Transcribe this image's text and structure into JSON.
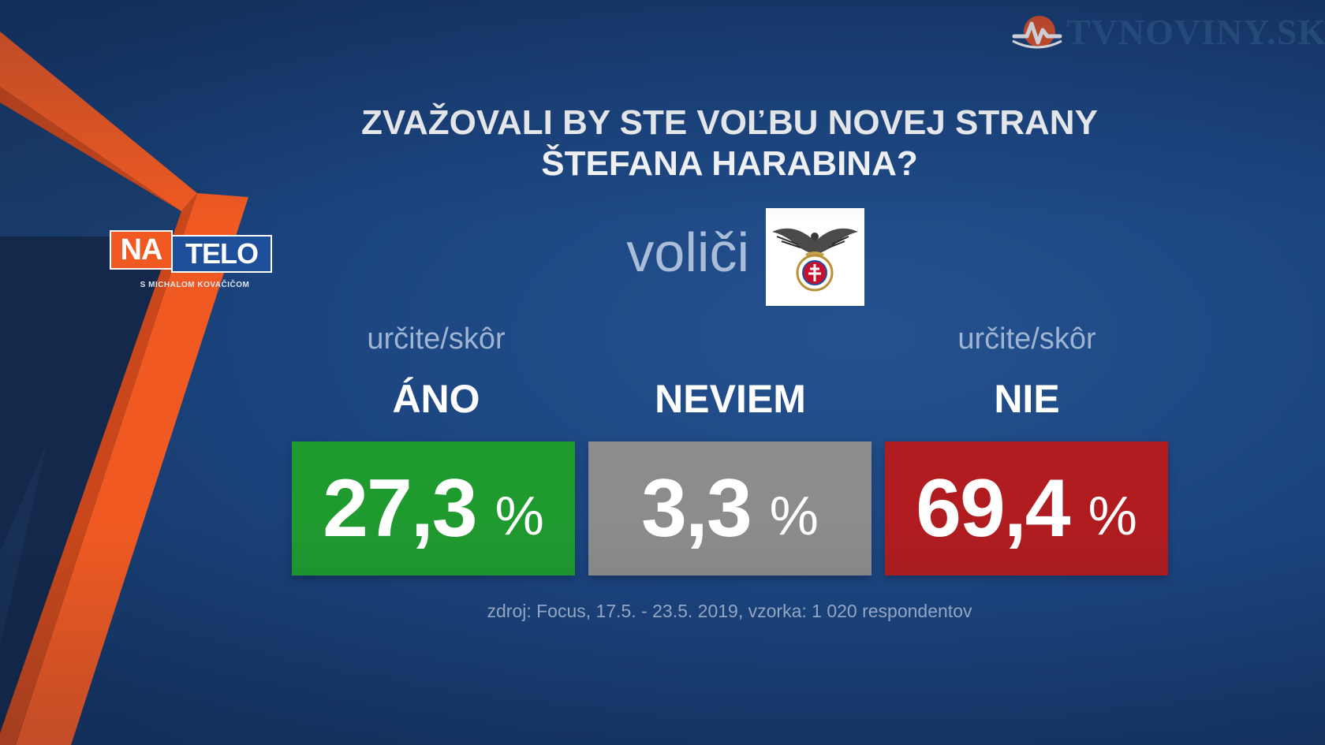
{
  "brand": {
    "show_logo_na": "NA",
    "show_logo_telo": "TELO",
    "show_logo_subtitle": "S MICHALOM KOVAČIČOM",
    "watermark": "TVNOVINY.SK"
  },
  "question": {
    "line1": "ZVAŽOVALI BY STE VOĽBU NOVEJ STRANY",
    "line2": "ŠTEFANA HARABINA?"
  },
  "subgroup_label": "voliči",
  "party_logo_icon": "eagle-emblem-icon",
  "source_text": "zdroj: Focus, 17.5. - 23.5. 2019, vzorka: 1 020 respondentov",
  "chart_data": {
    "type": "bar",
    "title": "ZVAŽOVALI BY STE VOĽBU NOVEJ STRANY ŠTEFANA HARABINA?",
    "categories": [
      "ÁNO",
      "NEVIEM",
      "NIE"
    ],
    "qualifiers": [
      "určite/skôr",
      "",
      "určite/skôr"
    ],
    "values": [
      27.3,
      3.3,
      69.4
    ],
    "value_labels": [
      "27,3",
      "3,3",
      "69,4"
    ],
    "unit": "%",
    "colors": [
      "#1f9a2f",
      "#8c8c8c",
      "#b01c1f"
    ]
  }
}
